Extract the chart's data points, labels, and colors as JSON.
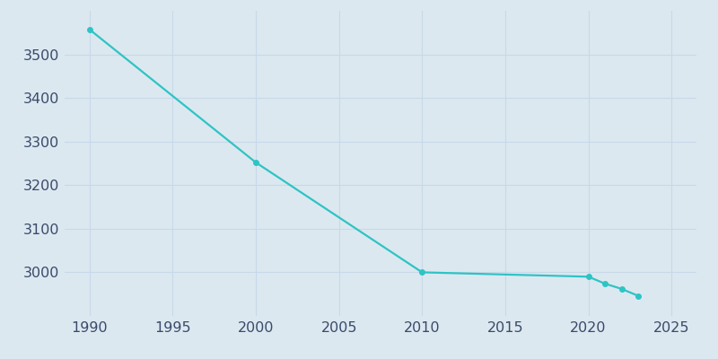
{
  "years": [
    1990,
    2000,
    2010,
    2020,
    2021,
    2022,
    2023
  ],
  "population": [
    3557,
    3252,
    3000,
    2990,
    2974,
    2962,
    2946
  ],
  "line_color": "#2ec4c4",
  "bg_color": "#dce8f0",
  "plot_bg_color": "#dce8f0",
  "grid_color": "#c8d8e8",
  "tick_color": "#3a4a6a",
  "xlim": [
    1988.5,
    2026.5
  ],
  "ylim": [
    2900,
    3600
  ],
  "xticks": [
    1990,
    1995,
    2000,
    2005,
    2010,
    2015,
    2020,
    2025
  ],
  "yticks": [
    3000,
    3100,
    3200,
    3300,
    3400,
    3500
  ],
  "line_width": 1.6,
  "marker_size": 4,
  "tick_fontsize": 11.5
}
